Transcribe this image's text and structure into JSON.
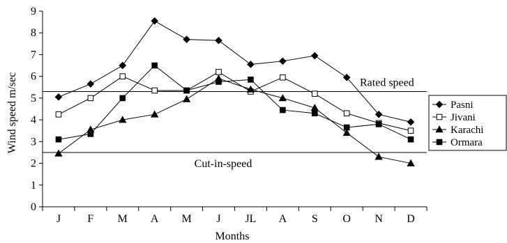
{
  "chart_data": {
    "type": "line",
    "title": "",
    "xlabel": "Months",
    "ylabel": "Wind speed m/sec",
    "categories": [
      "J",
      "F",
      "M",
      "A",
      "M",
      "J",
      "JL",
      "A",
      "S",
      "O",
      "N",
      "D"
    ],
    "ylim": [
      0,
      9
    ],
    "yticks": [
      "0",
      "1",
      "2",
      "3",
      "4",
      "5",
      "6",
      "7",
      "8",
      "9"
    ],
    "grid": false,
    "legend_position": "right",
    "reference_lines": [
      {
        "label": "Rated speed",
        "value": 5.3
      },
      {
        "label": "Cut-in-speed",
        "value": 2.5
      }
    ],
    "series": [
      {
        "name": "Pasni",
        "marker": "diamond",
        "values": [
          5.05,
          5.65,
          6.5,
          8.55,
          7.7,
          7.65,
          6.55,
          6.7,
          6.95,
          5.95,
          4.25,
          3.9
        ]
      },
      {
        "name": "Jivani",
        "marker": "square-open",
        "values": [
          4.25,
          5.0,
          6.0,
          5.35,
          5.35,
          6.2,
          5.3,
          5.95,
          5.2,
          4.3,
          3.85,
          3.5
        ]
      },
      {
        "name": "Karachi",
        "marker": "triangle",
        "values": [
          2.45,
          3.55,
          4.0,
          4.25,
          4.95,
          5.9,
          5.4,
          5.0,
          4.55,
          3.4,
          2.3,
          2.0
        ]
      },
      {
        "name": "Ormara",
        "marker": "square",
        "values": [
          3.1,
          3.35,
          5.0,
          6.5,
          5.35,
          5.75,
          5.85,
          4.45,
          4.3,
          3.65,
          3.8,
          3.1
        ]
      }
    ]
  }
}
